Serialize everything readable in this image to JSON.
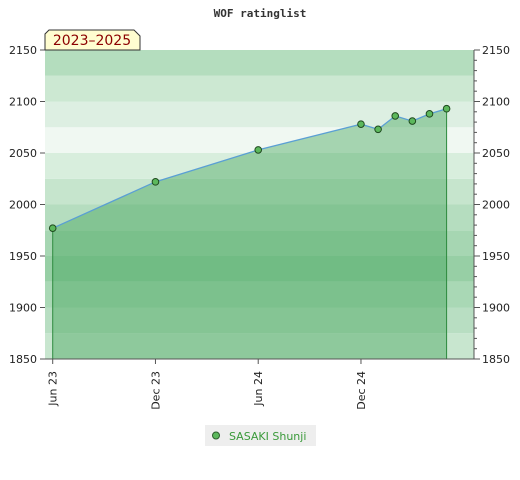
{
  "chart_data": {
    "type": "area",
    "title": "WOF ratinglist",
    "period_label": "2023–2025",
    "x_ticks": [
      "Jun 23",
      "Dec 23",
      "Jun 24",
      "Dec 24"
    ],
    "x_tick_months": [
      0,
      6,
      12,
      18
    ],
    "ylim": [
      1850,
      2150
    ],
    "y_ticks": [
      1850,
      1900,
      1950,
      2000,
      2050,
      2100,
      2150
    ],
    "legend_position": "bottom",
    "series": [
      {
        "name": "SASAKI Shunji",
        "color": "#5a9fd4",
        "marker_color": "#5cb85c",
        "points": [
          {
            "month": 0,
            "rating": 1977
          },
          {
            "month": 6,
            "rating": 2022
          },
          {
            "month": 12,
            "rating": 2053
          },
          {
            "month": 18,
            "rating": 2078
          },
          {
            "month": 19,
            "rating": 2073
          },
          {
            "month": 20,
            "rating": 2086
          },
          {
            "month": 21,
            "rating": 2081
          },
          {
            "month": 22,
            "rating": 2088
          },
          {
            "month": 23,
            "rating": 2093
          }
        ]
      }
    ],
    "colors": {
      "band_light": "#f0f8f0",
      "band_mid": "#cce6cc",
      "band_dark": "#7dc48f",
      "area_fill": "#8fcc9c"
    }
  }
}
